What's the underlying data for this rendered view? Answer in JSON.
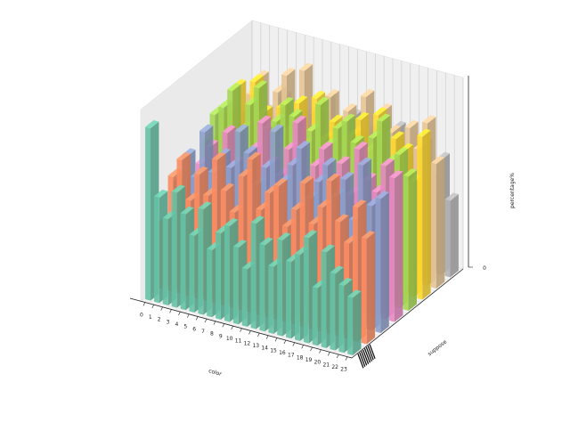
{
  "chart_data": {
    "type": "bar3d",
    "title": "",
    "xlabel": "color",
    "ylabel": "suppose",
    "zlabel": "percentage%",
    "x_ticks": [
      "0",
      "1",
      "2",
      "3",
      "4",
      "5",
      "6",
      "7",
      "8",
      "9",
      "10",
      "11",
      "12",
      "13",
      "14",
      "15",
      "16",
      "17",
      "18",
      "19",
      "20",
      "21",
      "22",
      "23"
    ],
    "z_ticks": [
      "0"
    ],
    "grid": true,
    "palette": [
      "#66c2a5",
      "#fc8d62",
      "#8da0cb",
      "#e78ac3",
      "#a6d854",
      "#ffd92f",
      "#e5c494",
      "#b3b3b3"
    ],
    "rows": 8,
    "heights": [
      [
        0.9,
        0.55,
        0.45,
        0.6,
        0.5,
        0.4,
        0.55,
        0.35,
        0.45,
        0.5,
        0.4,
        0.3,
        0.55,
        0.45,
        0.35,
        0.5,
        0.4,
        0.45,
        0.55,
        0.3,
        0.5,
        0.4,
        0.35,
        0.3
      ],
      [
        0.35,
        0.6,
        0.7,
        0.5,
        0.65,
        0.55,
        0.75,
        0.6,
        0.5,
        0.7,
        0.8,
        0.55,
        0.65,
        0.7,
        0.5,
        0.6,
        0.75,
        0.55,
        0.65,
        0.8,
        0.6,
        0.5,
        0.7,
        0.55
      ],
      [
        0.5,
        0.65,
        0.55,
        0.8,
        0.6,
        0.7,
        0.65,
        0.85,
        0.75,
        0.6,
        0.7,
        0.9,
        0.65,
        0.75,
        0.85,
        0.6,
        0.7,
        0.8,
        0.65,
        0.75,
        0.55,
        0.85,
        0.65,
        0.7
      ],
      [
        0.45,
        0.55,
        0.65,
        0.5,
        0.75,
        0.6,
        0.55,
        0.7,
        0.85,
        0.65,
        0.6,
        0.75,
        0.9,
        0.55,
        0.7,
        0.8,
        0.65,
        0.75,
        0.6,
        0.85,
        0.7,
        0.65,
        0.8,
        0.75
      ],
      [
        0.6,
        0.75,
        0.8,
        0.9,
        0.7,
        0.85,
        0.95,
        0.75,
        0.8,
        0.9,
        0.85,
        0.7,
        0.8,
        0.95,
        0.75,
        0.85,
        0.9,
        0.8,
        0.7,
        0.85,
        0.95,
        0.75,
        0.8,
        0.7
      ],
      [
        0.55,
        0.7,
        0.85,
        0.65,
        0.9,
        0.75,
        0.6,
        0.8,
        0.7,
        0.85,
        0.65,
        0.9,
        0.7,
        0.8,
        0.6,
        0.75,
        0.85,
        0.7,
        0.9,
        0.65,
        0.8,
        0.75,
        0.6,
        0.85
      ],
      [
        0.4,
        0.65,
        0.75,
        0.85,
        0.6,
        0.8,
        0.9,
        0.7,
        0.95,
        0.65,
        0.75,
        0.85,
        0.6,
        0.8,
        0.7,
        0.9,
        0.65,
        0.85,
        0.75,
        0.6,
        0.8,
        0.7,
        0.85,
        0.65
      ],
      [
        0.2,
        0.5,
        0.6,
        0.45,
        0.7,
        0.55,
        0.4,
        0.65,
        0.5,
        0.75,
        0.6,
        0.45,
        0.7,
        0.55,
        0.65,
        0.5,
        0.6,
        0.7,
        0.55,
        0.45,
        0.65,
        0.5,
        0.6,
        0.4
      ]
    ]
  }
}
